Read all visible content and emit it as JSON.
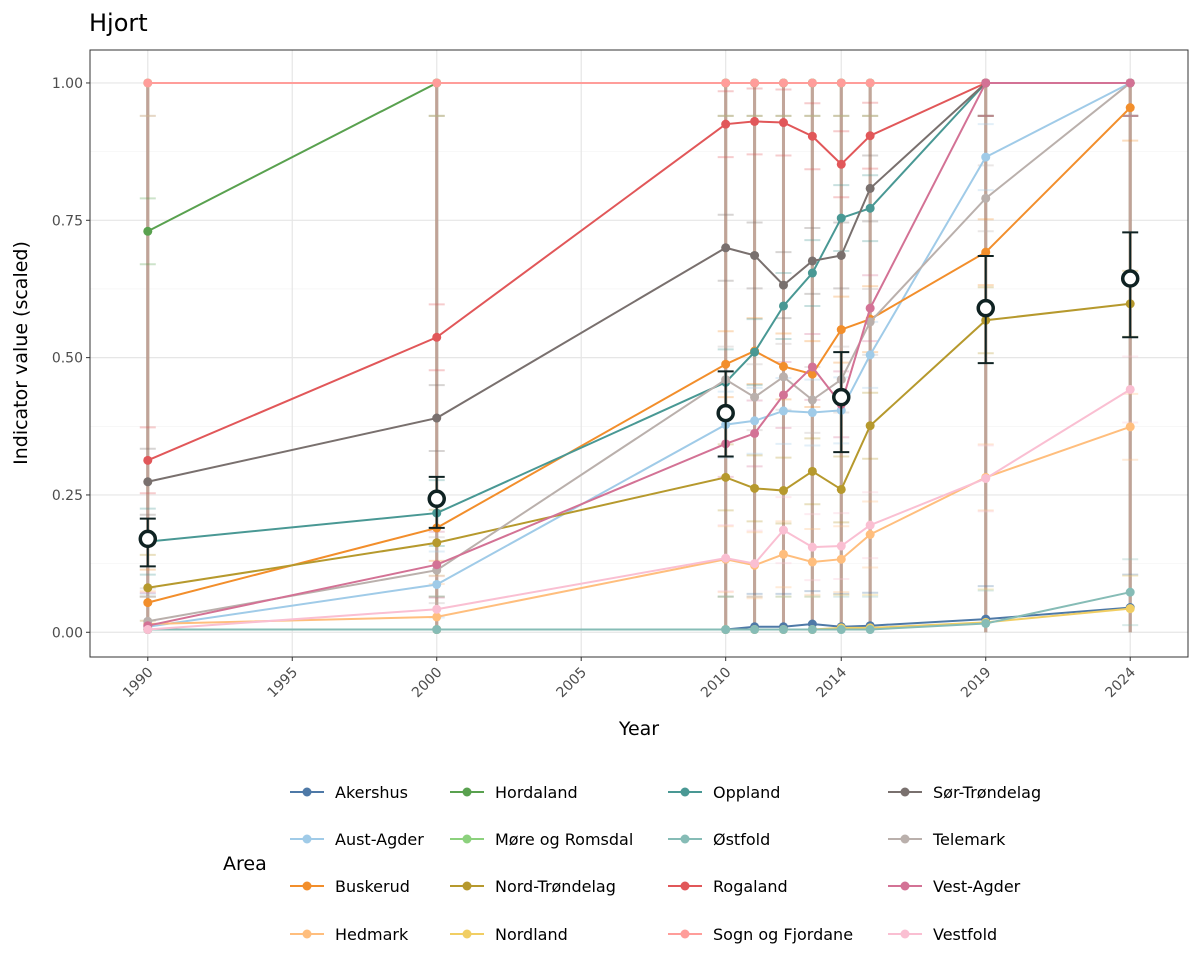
{
  "chart_data": {
    "type": "line",
    "title": "Hjort",
    "xlabel": "Year",
    "ylabel": "Indicator value (scaled)",
    "xlim": [
      1988,
      2026
    ],
    "ylim": [
      -0.045,
      1.06
    ],
    "x_ticks": [
      1990,
      1995,
      2000,
      2005,
      2010,
      2014,
      2019,
      2024
    ],
    "y_ticks": [
      0,
      0.25,
      0.5,
      0.75,
      1.0
    ],
    "y_tick_labels": [
      "0.00",
      "0.25",
      "0.50",
      "0.75",
      "1.00"
    ],
    "grid": true,
    "legend_title": "Area",
    "legend_position": "bottom",
    "x": [
      1990,
      2000,
      2010,
      2011,
      2012,
      2013,
      2014,
      2015,
      2019,
      2024
    ],
    "series": [
      {
        "name": "Akershus",
        "color": "#4e79a7",
        "values": [
          0.005,
          0.005,
          0.005,
          0.01,
          0.01,
          0.015,
          0.01,
          0.012,
          0.024,
          0.045
        ]
      },
      {
        "name": "Aust-Agder",
        "color": "#a0cbe8",
        "values": [
          0.01,
          0.087,
          0.378,
          0.385,
          0.403,
          0.4,
          0.404,
          0.505,
          0.865,
          1.0
        ]
      },
      {
        "name": "Buskerud",
        "color": "#f28e2b",
        "values": [
          0.054,
          0.19,
          0.488,
          0.512,
          0.484,
          0.47,
          0.551,
          0.57,
          0.692,
          0.955
        ]
      },
      {
        "name": "Hedmark",
        "color": "#ffbe7d",
        "values": [
          0.015,
          0.028,
          0.133,
          0.122,
          0.142,
          0.128,
          0.133,
          0.178,
          0.282,
          0.374
        ]
      },
      {
        "name": "Hordaland",
        "color": "#59a14f",
        "values": [
          0.73,
          1.0,
          1.0,
          1.0,
          1.0,
          1.0,
          1.0,
          1.0,
          1.0,
          1.0
        ]
      },
      {
        "name": "Møre og Romsdal",
        "color": "#8cd17d",
        "values": [
          1.0,
          1.0,
          1.0,
          1.0,
          1.0,
          1.0,
          1.0,
          1.0,
          1.0,
          1.0
        ]
      },
      {
        "name": "Nord-Trøndelag",
        "color": "#b6992d",
        "values": [
          0.081,
          0.163,
          0.282,
          0.262,
          0.258,
          0.293,
          0.26,
          0.376,
          0.568,
          0.598
        ]
      },
      {
        "name": "Nordland",
        "color": "#f1ce63",
        "values": [
          0.005,
          0.005,
          0.005,
          0.005,
          0.005,
          0.005,
          0.008,
          0.008,
          0.018,
          0.043
        ]
      },
      {
        "name": "Oppland",
        "color": "#499894",
        "values": [
          0.165,
          0.217,
          0.455,
          0.51,
          0.594,
          0.654,
          0.754,
          0.772,
          1.0,
          1.0
        ]
      },
      {
        "name": "Østfold",
        "color": "#86bcb6",
        "values": [
          0.005,
          0.005,
          0.005,
          0.005,
          0.005,
          0.005,
          0.005,
          0.005,
          0.016,
          0.073
        ]
      },
      {
        "name": "Rogaland",
        "color": "#e15759",
        "values": [
          0.313,
          0.537,
          0.925,
          0.93,
          0.928,
          0.903,
          0.852,
          0.904,
          1.0,
          1.0
        ]
      },
      {
        "name": "Sogn og Fjordane",
        "color": "#ff9d9a",
        "values": [
          1.0,
          1.0,
          1.0,
          1.0,
          1.0,
          1.0,
          1.0,
          1.0,
          1.0,
          1.0
        ]
      },
      {
        "name": "Sør-Trøndelag",
        "color": "#79706e",
        "values": [
          0.274,
          0.39,
          0.7,
          0.686,
          0.632,
          0.676,
          0.686,
          0.808,
          1.0,
          1.0
        ]
      },
      {
        "name": "Telemark",
        "color": "#bab0ac",
        "values": [
          0.02,
          0.113,
          0.46,
          0.428,
          0.465,
          0.423,
          0.46,
          0.565,
          0.79,
          1.0
        ]
      },
      {
        "name": "Vest-Agder",
        "color": "#d37295",
        "values": [
          0.012,
          0.123,
          0.343,
          0.362,
          0.432,
          0.483,
          0.415,
          0.59,
          1.0,
          1.0
        ]
      },
      {
        "name": "Vestfold",
        "color": "#fabfd2",
        "values": [
          0.005,
          0.042,
          0.135,
          0.125,
          0.186,
          0.155,
          0.157,
          0.195,
          0.28,
          0.442
        ]
      }
    ],
    "mean": {
      "x": [
        1990,
        2000,
        2010,
        2014,
        2019,
        2024
      ],
      "values": [
        0.17,
        0.243,
        0.399,
        0.428,
        0.59,
        0.644
      ],
      "lower": [
        0.12,
        0.19,
        0.32,
        0.328,
        0.49,
        0.537
      ],
      "upper": [
        0.207,
        0.283,
        0.475,
        0.51,
        0.685,
        0.728
      ]
    }
  }
}
